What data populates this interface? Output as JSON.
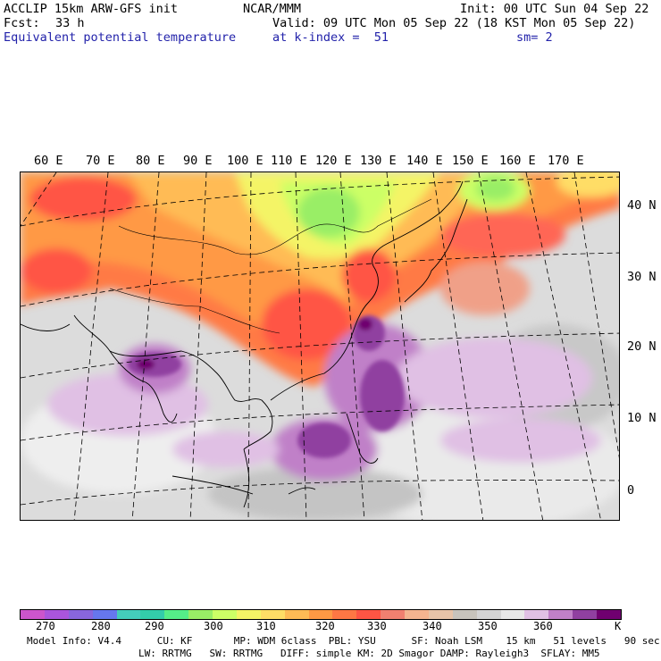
{
  "header": {
    "model": "ACCLIP 15km ARW-GFS init",
    "center": "NCAR/MMM",
    "init": "Init: 00 UTC Sun 04 Sep 22",
    "fcst_label": "Fcst:",
    "fcst_value": "33 h",
    "valid": "Valid: 09 UTC Mon 05 Sep 22 (18 KST Mon 05 Sep 22)",
    "field": "Equivalent potential temperature",
    "level": "at k-index =  51",
    "smooth": "sm= 2"
  },
  "map": {
    "lon_labels": [
      "60 E",
      "70 E",
      "80 E",
      "90 E",
      "100 E",
      "110 E",
      "120 E",
      "130 E",
      "140 E",
      "150 E",
      "160 E",
      "170 E"
    ],
    "lat_labels": [
      "40 N",
      "30 N",
      "20 N",
      "10 N",
      "0"
    ]
  },
  "colorbar": {
    "colors": [
      "#cc55cc",
      "#aa55dd",
      "#8866dd",
      "#6677ee",
      "#44ccbb",
      "#33ccaa",
      "#55ee88",
      "#99ee66",
      "#ccff66",
      "#f4f466",
      "#ffdd66",
      "#ffbb55",
      "#ff9944",
      "#ff7744",
      "#ff5544",
      "#f08070",
      "#f4b490",
      "#e8c4a8",
      "#c8c4bc",
      "#d4d4d4",
      "#e8e8e8",
      "#e0c0e4",
      "#c080c8",
      "#9040a0",
      "#700070"
    ],
    "tick_labels": [
      "270",
      "280",
      "290",
      "300",
      "310",
      "320",
      "330",
      "340",
      "350",
      "360"
    ],
    "unit": "K"
  },
  "info": {
    "line1": "Model Info: V4.4      CU: KF       MP: WDM 6class  PBL: YSU      SF: Noah LSM    15 km   51 levels   90 sec",
    "line2": "LW: RRTMG   SW: RRTMG   DIFF: simple KM: 2D Smagor DAMP: Rayleigh3  SFLAY: MM5"
  }
}
